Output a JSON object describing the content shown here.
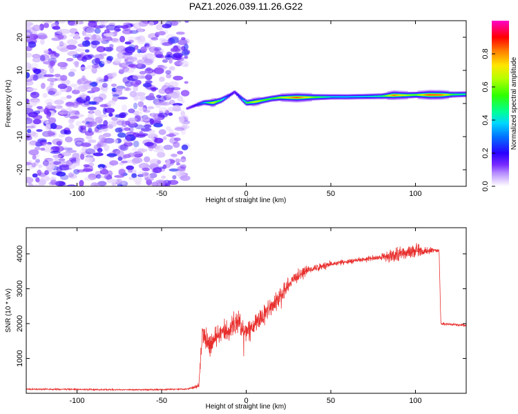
{
  "page_title": "PAZ1.2026.039.11.26.G22",
  "chart_data": [
    {
      "type": "heatmap",
      "title": "PAZ1.2026.039.11.26.G22",
      "xlabel": "Height of straight line (km)",
      "ylabel": "Frequency (Hz)",
      "xlim": [
        -130,
        130
      ],
      "ylim": [
        -25,
        25
      ],
      "x_ticks": [
        "-100",
        "-50",
        "0",
        "50",
        "100"
      ],
      "y_ticks": [
        "20",
        "10",
        "0",
        "-10",
        "-20"
      ],
      "noise_region": {
        "x_range": [
          -130,
          -35
        ],
        "y_range": [
          -25,
          25
        ],
        "max_amplitude": 0.3
      },
      "ridge": [
        {
          "x": -35,
          "y": -1.5,
          "amp": 0.2
        },
        {
          "x": -30,
          "y": -0.5,
          "amp": 0.3
        },
        {
          "x": -25,
          "y": 0.3,
          "amp": 0.45
        },
        {
          "x": -20,
          "y": 0.2,
          "amp": 0.75
        },
        {
          "x": -15,
          "y": 1.0,
          "amp": 0.55
        },
        {
          "x": -10,
          "y": 2.5,
          "amp": 0.3
        },
        {
          "x": -7,
          "y": 3.5,
          "amp": 0.25
        },
        {
          "x": -3,
          "y": 1.5,
          "amp": 0.4
        },
        {
          "x": 0,
          "y": 0.2,
          "amp": 0.6
        },
        {
          "x": 5,
          "y": 0.5,
          "amp": 0.75
        },
        {
          "x": 10,
          "y": 1.0,
          "amp": 0.65
        },
        {
          "x": 15,
          "y": 1.5,
          "amp": 0.6
        },
        {
          "x": 20,
          "y": 1.8,
          "amp": 0.7
        },
        {
          "x": 30,
          "y": 1.8,
          "amp": 0.92
        },
        {
          "x": 40,
          "y": 1.9,
          "amp": 0.65
        },
        {
          "x": 50,
          "y": 2.0,
          "amp": 0.5
        },
        {
          "x": 60,
          "y": 2.0,
          "amp": 0.48
        },
        {
          "x": 70,
          "y": 2.1,
          "amp": 0.5
        },
        {
          "x": 80,
          "y": 2.2,
          "amp": 0.55
        },
        {
          "x": 87,
          "y": 2.5,
          "amp": 0.88
        },
        {
          "x": 95,
          "y": 2.5,
          "amp": 0.7
        },
        {
          "x": 100,
          "y": 2.6,
          "amp": 0.65
        },
        {
          "x": 108,
          "y": 2.6,
          "amp": 0.93
        },
        {
          "x": 115,
          "y": 2.6,
          "amp": 0.9
        },
        {
          "x": 122,
          "y": 2.7,
          "amp": 0.6
        },
        {
          "x": 130,
          "y": 2.8,
          "amp": 0.55
        }
      ],
      "colorbar": {
        "label": "Normalized spectral amplitude",
        "ticks": [
          "0.0",
          "0.2",
          "0.4",
          "0.6",
          "0.8"
        ],
        "range": [
          0,
          1
        ]
      }
    },
    {
      "type": "line",
      "xlabel": "Height of straight line (km)",
      "ylabel": "SNR (10 * v/v)",
      "xlim": [
        -130,
        130
      ],
      "ylim": [
        0,
        4750
      ],
      "x_ticks": [
        "-100",
        "-50",
        "0",
        "50",
        "100"
      ],
      "y_ticks": [
        "1000",
        "2000",
        "3000",
        "4000"
      ],
      "color": "#e8302e",
      "series": [
        {
          "name": "SNR",
          "x": [
            -130,
            -100,
            -60,
            -35,
            -28,
            -27,
            -26,
            -22,
            -15,
            -10,
            -5,
            0,
            5,
            10,
            15,
            20,
            25,
            30,
            35,
            40,
            50,
            60,
            70,
            80,
            85,
            90,
            95,
            100,
            105,
            110,
            114,
            115,
            120,
            130
          ],
          "y": [
            120,
            110,
            100,
            120,
            220,
            1000,
            1600,
            1350,
            1700,
            1850,
            2000,
            1700,
            2000,
            2250,
            2500,
            2800,
            3100,
            3350,
            3500,
            3600,
            3700,
            3780,
            3850,
            3900,
            3950,
            4000,
            4050,
            4100,
            4080,
            4100,
            4100,
            2000,
            1980,
            1950
          ],
          "noise": [
            20,
            20,
            20,
            20,
            60,
            300,
            330,
            320,
            320,
            330,
            350,
            330,
            320,
            300,
            280,
            250,
            220,
            170,
            130,
            110,
            80,
            70,
            70,
            80,
            200,
            220,
            200,
            260,
            120,
            80,
            70,
            50,
            40,
            40
          ]
        }
      ]
    }
  ]
}
